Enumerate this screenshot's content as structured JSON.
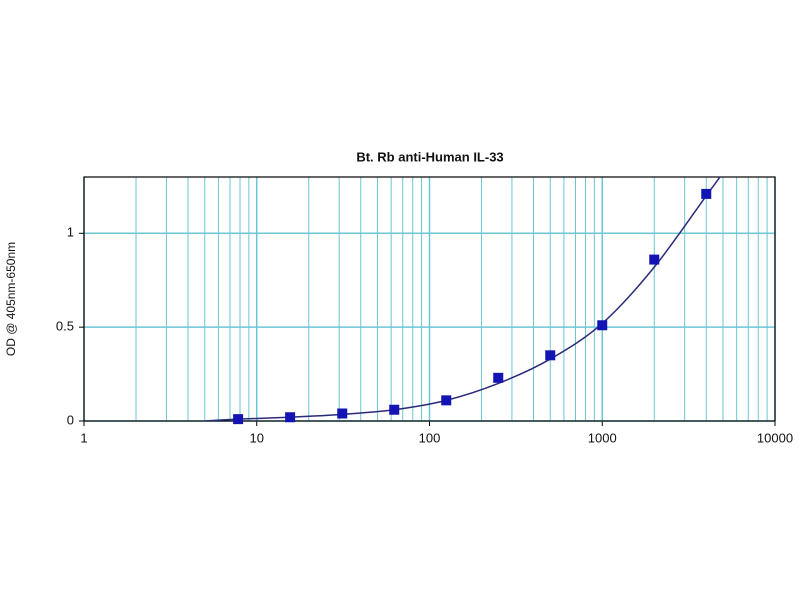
{
  "chart_data": {
    "type": "scatter",
    "title": "Bt. Rb anti-Human IL-33",
    "ylabel": "OD @ 405nm-650nm",
    "xscale": "log",
    "xlim": [
      1,
      10000
    ],
    "xticks": [
      1,
      10,
      100,
      1000,
      10000
    ],
    "x_minor_gridlines": [
      2,
      3,
      4,
      5,
      6,
      7,
      8,
      9,
      20,
      30,
      40,
      50,
      60,
      70,
      80,
      90,
      200,
      300,
      400,
      500,
      600,
      700,
      800,
      900,
      2000,
      3000,
      4000,
      5000,
      6000,
      7000,
      8000,
      9000
    ],
    "ylim": [
      0,
      1.3
    ],
    "yticks": [
      0,
      0.5,
      1
    ],
    "grid": true,
    "grid_color": "#6cc6d6",
    "series": [
      {
        "type": "scatter",
        "color": "#1414b4",
        "x": [
          7.8,
          15.6,
          31.25,
          62.5,
          125,
          250,
          500,
          1000,
          2000,
          4000
        ],
        "values": [
          0.01,
          0.02,
          0.04,
          0.06,
          0.11,
          0.23,
          0.35,
          0.51,
          0.86,
          1.21
        ]
      },
      {
        "type": "line",
        "color": "#2a2a7a",
        "x": [
          5,
          7.8,
          15.6,
          31.25,
          62.5,
          125,
          250,
          500,
          1000,
          2000,
          4000,
          4800
        ],
        "values": [
          0.0,
          0.01,
          0.02,
          0.035,
          0.06,
          0.11,
          0.2,
          0.33,
          0.52,
          0.82,
          1.2,
          1.3
        ]
      }
    ]
  }
}
